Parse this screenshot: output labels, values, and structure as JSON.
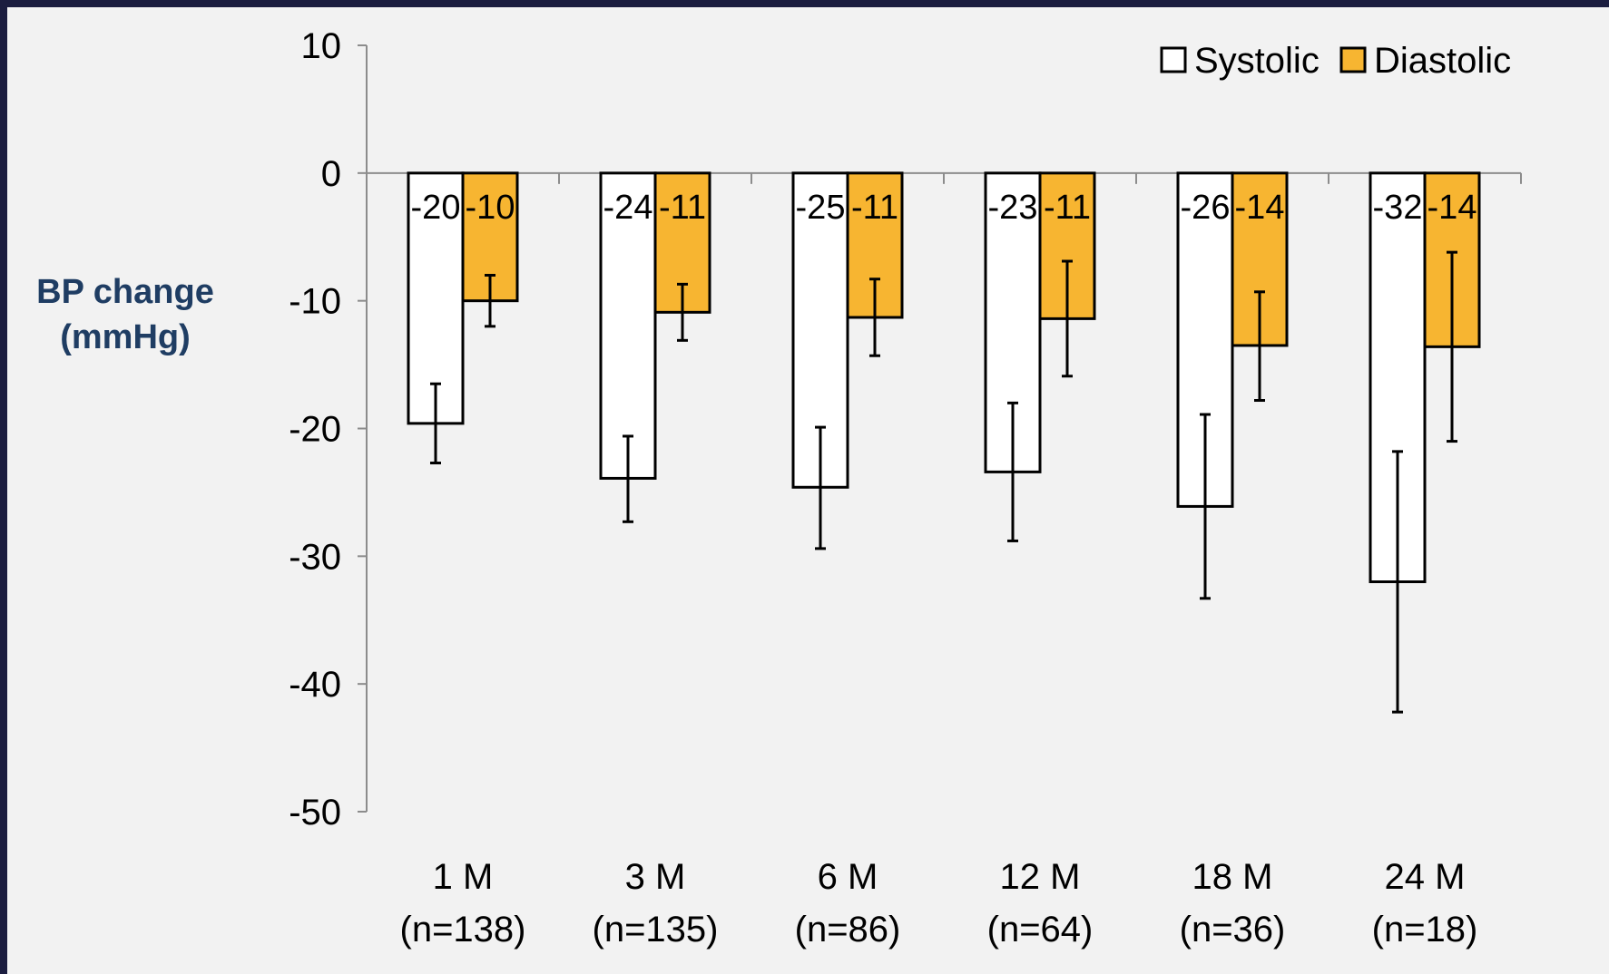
{
  "chart_data": {
    "type": "bar",
    "ylabel": [
      "BP change",
      "(mmHg)"
    ],
    "ylim": [
      -50,
      10
    ],
    "yticks": [
      10,
      0,
      -10,
      -20,
      -30,
      -40,
      -50
    ],
    "categories": [
      [
        "1 M",
        "(n=138)"
      ],
      [
        "3 M",
        "(n=135)"
      ],
      [
        "6 M",
        "(n=86)"
      ],
      [
        "12 M",
        "(n=64)"
      ],
      [
        "18 M",
        "(n=36)"
      ],
      [
        "24 M",
        "(n=18)"
      ]
    ],
    "series": [
      {
        "name": "Systolic",
        "color": "#ffffff",
        "values": [
          -19.6,
          -23.9,
          -24.6,
          -23.4,
          -26.1,
          -32
        ],
        "labels": [
          "-20",
          "-24",
          "-25",
          "-23",
          "-26",
          "-32"
        ],
        "error_low": [
          -22.7,
          -27.3,
          -29.4,
          -28.8,
          -33.3,
          -42.2
        ],
        "error_high": [
          -16.5,
          -20.6,
          -19.9,
          -18.0,
          -18.9,
          -21.8
        ]
      },
      {
        "name": "Diastolic",
        "color": "#f7b531",
        "values": [
          -10,
          -10.9,
          -11.3,
          -11.4,
          -13.5,
          -13.6
        ],
        "labels": [
          "-10",
          "-11",
          "-11",
          "-11",
          "-14",
          "-14"
        ],
        "error_low": [
          -12.0,
          -13.1,
          -14.3,
          -15.9,
          -17.8,
          -21.0
        ],
        "error_high": [
          -8.0,
          -8.7,
          -8.3,
          -6.9,
          -9.3,
          -6.2
        ]
      }
    ],
    "legend_position": "top-right",
    "grid": false
  }
}
